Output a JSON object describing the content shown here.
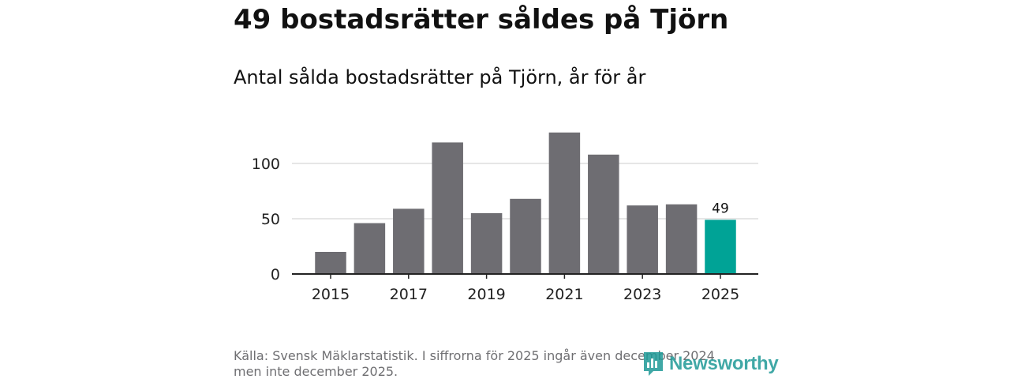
{
  "title": "49 bostadsrätter såldes på Tjörn",
  "subtitle": "Antal sålda bostadsrätter på Tjörn, år för år",
  "footnote": "Källa: Svensk Mäklarstatistik. I siffrorna för 2025 ingår även december 2024 men inte december 2025.",
  "brand": {
    "name": "Newsworthy",
    "icon": "newsworthy-logo-icon",
    "color": "#1f9a97"
  },
  "colors": {
    "bar": "#6e6d72",
    "highlight": "#00a396",
    "grid": "#dddddd",
    "axis": "#222222"
  },
  "chart_data": {
    "type": "bar",
    "title": "Antal sålda bostadsrätter på Tjörn, år för år",
    "xlabel": "",
    "ylabel": "",
    "categories": [
      "2015",
      "2016",
      "2017",
      "2018",
      "2019",
      "2020",
      "2021",
      "2022",
      "2023",
      "2024",
      "2025"
    ],
    "values": [
      20,
      46,
      59,
      119,
      55,
      68,
      128,
      108,
      62,
      63,
      49
    ],
    "highlight_index": 10,
    "highlight_label": "49",
    "x_tick_labels": [
      "2015",
      "2017",
      "2019",
      "2021",
      "2023",
      "2025"
    ],
    "y_ticks": [
      0,
      50,
      100
    ],
    "ylim": [
      0,
      150
    ],
    "grid": true
  }
}
